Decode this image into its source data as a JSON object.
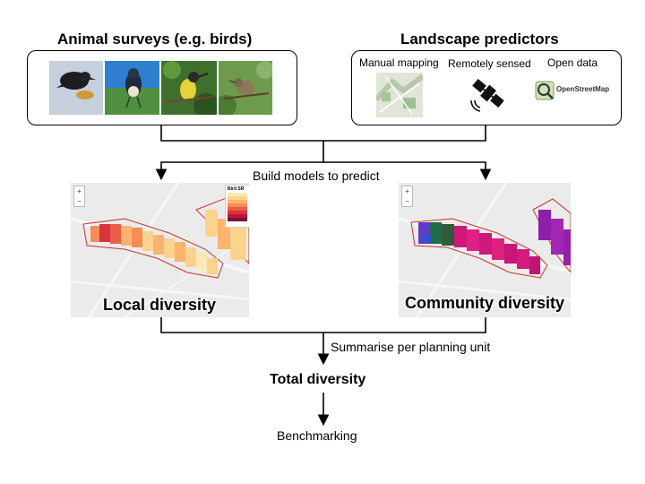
{
  "surveys": {
    "title": "Animal surveys (e.g. birds)",
    "photos": [
      "bird-photo-1",
      "bird-photo-2",
      "bird-photo-3",
      "bird-photo-4"
    ]
  },
  "predictors": {
    "title": "Landscape predictors",
    "items": [
      {
        "label": "Manual mapping",
        "icon": "map-thumbnail-icon"
      },
      {
        "label": "Remotely sensed",
        "icon": "satellite-icon"
      },
      {
        "label": "Open data",
        "icon": "openstreetmap-logo-icon",
        "logo_text": "OpenStreetMap"
      }
    ]
  },
  "flow": {
    "build_label": "Build models to predict",
    "local_title": "Local diversity",
    "community_title": "Community diversity",
    "summarise_label": "Summarise per planning unit",
    "total_label": "Total diversity",
    "benchmark_label": "Benchmarking"
  },
  "legend": {
    "title": "Bird SR",
    "colors": [
      "#fde9b6",
      "#fcd38d",
      "#fbb36e",
      "#f78c56",
      "#ec5c47",
      "#d8343f",
      "#b31b3c",
      "#7c1034"
    ]
  }
}
